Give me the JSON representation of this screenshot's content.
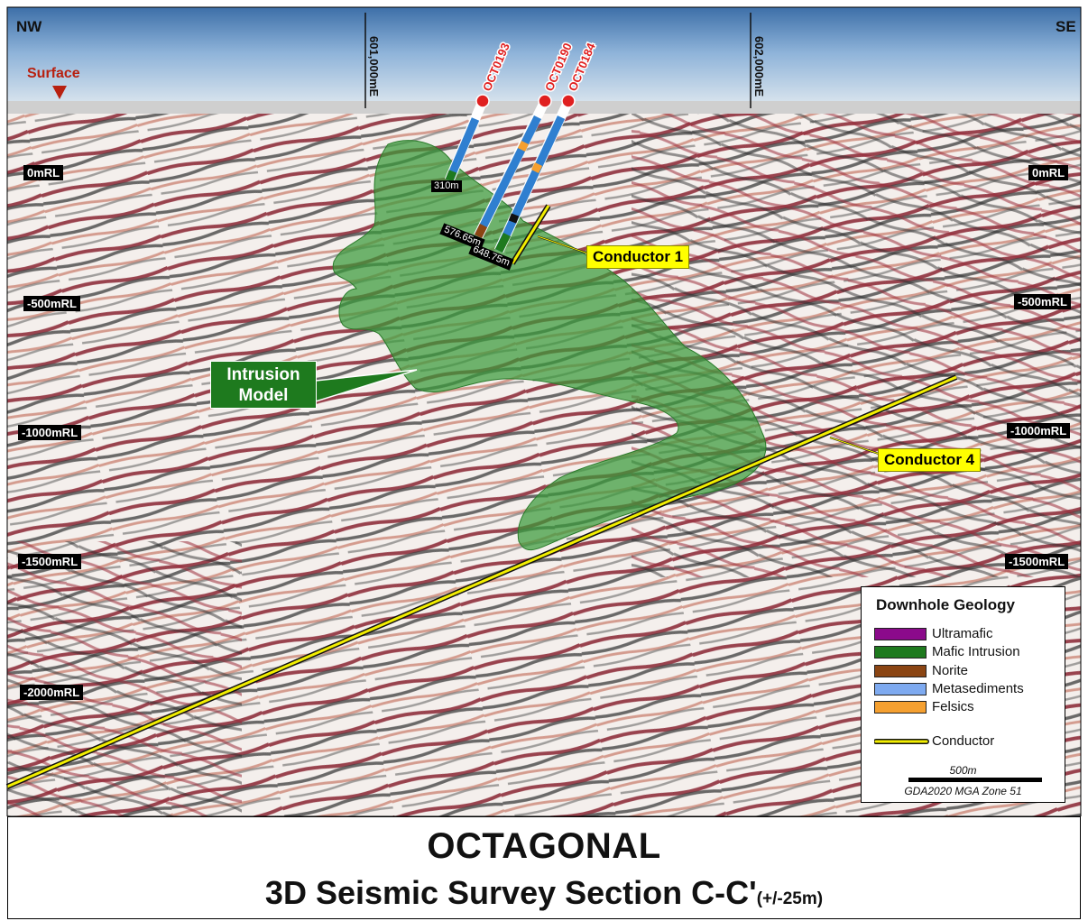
{
  "compass": {
    "left": "NW",
    "right": "SE"
  },
  "surface_label": "Surface",
  "eastings": [
    "601,000mE",
    "602,000mE"
  ],
  "rl_left": [
    "0mRL",
    "-500mRL",
    "-1000mRL",
    "-1500mRL",
    "-2000mRL"
  ],
  "rl_right": [
    "0mRL",
    "-500mRL",
    "-1000mRL",
    "-1500mRL"
  ],
  "drillholes": [
    "OCT0193",
    "OCT0190",
    "OCT0184"
  ],
  "depths": [
    "310m",
    "576.65m",
    "648.75m"
  ],
  "labels": {
    "intrusion_line1": "Intrusion",
    "intrusion_line2": "Model",
    "conductor1": "Conductor 1",
    "conductor4": "Conductor 4"
  },
  "legend": {
    "title": "Downhole Geology",
    "items": [
      {
        "label": "Ultramafic",
        "color": "#8b0a8b"
      },
      {
        "label": "Mafic Intrusion",
        "color": "#1e7a1e"
      },
      {
        "label": "Norite",
        "color": "#8b4513"
      },
      {
        "label": "Metasediments",
        "color": "#7eaaf0"
      },
      {
        "label": "Felsics",
        "color": "#f5a030"
      }
    ],
    "conductor_label": "Conductor",
    "conductor_color": "#f2ee00",
    "scale_label": "500m",
    "crs": "GDA2020 MGA Zone 51"
  },
  "title": {
    "line1": "OCTAGONAL",
    "line2": "3D Seismic Survey Section C-C'",
    "line2_suffix": "(+/-25m)"
  }
}
